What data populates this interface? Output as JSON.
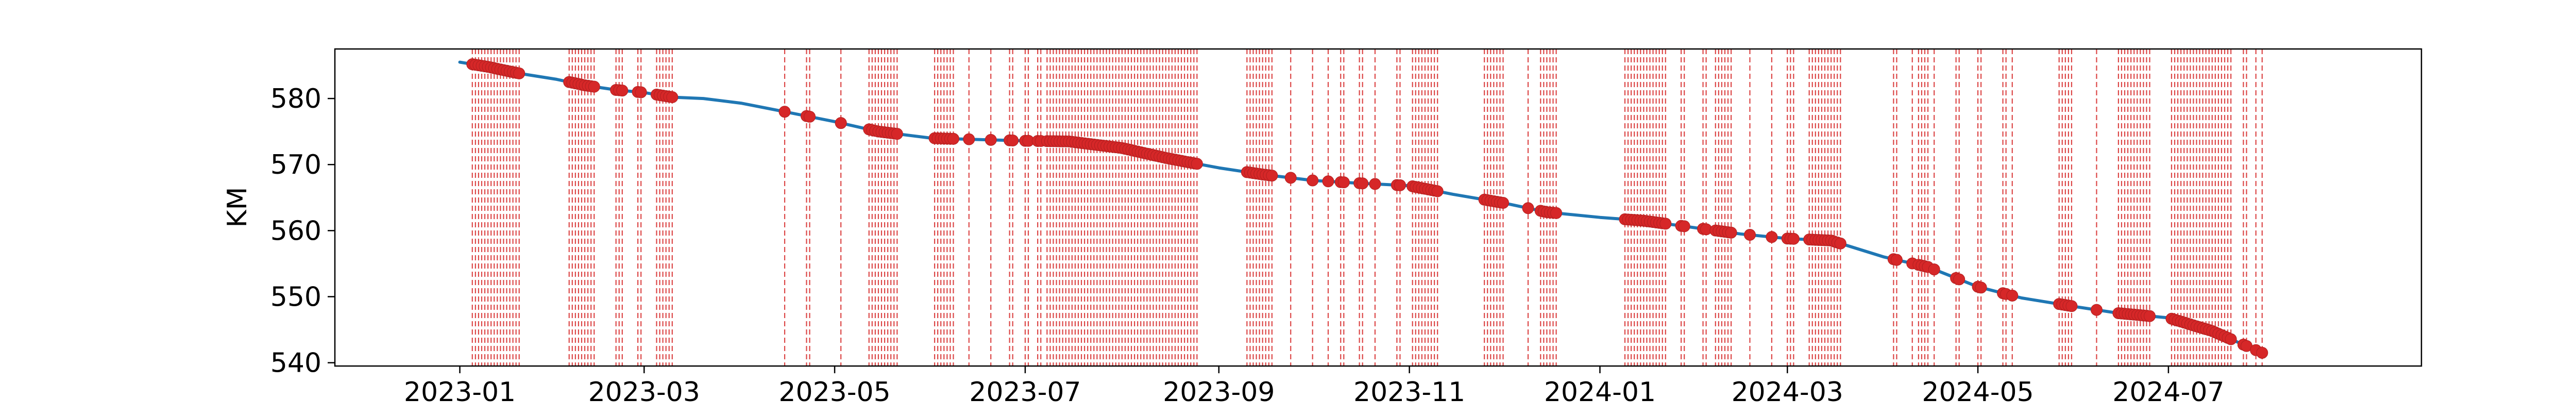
{
  "chart_data": {
    "type": "line",
    "title": "",
    "xlabel": "",
    "ylabel": "KM",
    "x_range": [
      "2022-11-22",
      "2024-09-20"
    ],
    "ylim": [
      539.5,
      587.5
    ],
    "grid": false,
    "x_ticks": [
      "2023-01",
      "2023-03",
      "2023-05",
      "2023-07",
      "2023-09",
      "2023-11",
      "2024-01",
      "2024-03",
      "2024-05",
      "2024-07"
    ],
    "x_tick_dates": [
      "2023-01-01",
      "2023-03-01",
      "2023-05-01",
      "2023-07-01",
      "2023-09-01",
      "2023-11-01",
      "2024-01-01",
      "2024-03-01",
      "2024-05-01",
      "2024-07-01"
    ],
    "y_ticks": [
      "540",
      "550",
      "560",
      "570",
      "580"
    ],
    "y_tick_values": [
      540,
      550,
      560,
      570,
      580
    ],
    "line_color": "#1f77b4",
    "marker_color": "#d62728",
    "series": [
      {
        "x": [
          "2023-01-01",
          "2023-01-10",
          "2023-01-20",
          "2023-02-01",
          "2023-02-10",
          "2023-02-20",
          "2023-03-01",
          "2023-03-10",
          "2023-03-20",
          "2023-04-01",
          "2023-04-15",
          "2023-05-01",
          "2023-05-15",
          "2023-06-01",
          "2023-06-15",
          "2023-07-01",
          "2023-07-15",
          "2023-08-01",
          "2023-08-15",
          "2023-09-01",
          "2023-09-15",
          "2023-10-01",
          "2023-10-15",
          "2023-11-01",
          "2023-11-15",
          "2023-12-01",
          "2023-12-15",
          "2024-01-01",
          "2024-01-15",
          "2024-02-01",
          "2024-02-15",
          "2024-03-01",
          "2024-03-15",
          "2024-04-01",
          "2024-04-15",
          "2024-05-01",
          "2024-05-15",
          "2024-06-01",
          "2024-06-15",
          "2024-07-01",
          "2024-07-15",
          "2024-07-31"
        ],
        "y": [
          585.5,
          584.8,
          583.8,
          582.9,
          582.0,
          581.3,
          580.9,
          580.2,
          580.0,
          579.3,
          578.0,
          576.5,
          575.0,
          574.0,
          573.8,
          573.6,
          573.5,
          572.5,
          571.0,
          569.5,
          568.5,
          567.6,
          567.2,
          566.8,
          565.5,
          564.2,
          562.8,
          562.0,
          561.5,
          560.4,
          559.5,
          558.8,
          558.5,
          556.0,
          554.5,
          551.5,
          549.8,
          548.5,
          547.5,
          546.8,
          544.8,
          541.5
        ]
      }
    ],
    "marker_dates": [
      "2023-01-05",
      "2023-01-06",
      "2023-01-07",
      "2023-01-08",
      "2023-01-09",
      "2023-01-10",
      "2023-01-11",
      "2023-01-12",
      "2023-01-13",
      "2023-01-14",
      "2023-01-15",
      "2023-01-16",
      "2023-01-17",
      "2023-01-18",
      "2023-01-19",
      "2023-01-20",
      "2023-02-05",
      "2023-02-06",
      "2023-02-07",
      "2023-02-08",
      "2023-02-09",
      "2023-02-10",
      "2023-02-11",
      "2023-02-12",
      "2023-02-13",
      "2023-02-20",
      "2023-02-21",
      "2023-02-22",
      "2023-02-27",
      "2023-02-28",
      "2023-03-05",
      "2023-03-06",
      "2023-03-07",
      "2023-03-08",
      "2023-03-09",
      "2023-03-10",
      "2023-04-15",
      "2023-04-22",
      "2023-04-23",
      "2023-05-03",
      "2023-05-12",
      "2023-05-13",
      "2023-05-14",
      "2023-05-15",
      "2023-05-16",
      "2023-05-17",
      "2023-05-18",
      "2023-05-19",
      "2023-05-20",
      "2023-05-21",
      "2023-06-02",
      "2023-06-03",
      "2023-06-04",
      "2023-06-05",
      "2023-06-06",
      "2023-06-07",
      "2023-06-08",
      "2023-06-13",
      "2023-06-20",
      "2023-06-26",
      "2023-06-27",
      "2023-07-01",
      "2023-07-02",
      "2023-07-05",
      "2023-07-06",
      "2023-07-08",
      "2023-07-09",
      "2023-07-10",
      "2023-07-11",
      "2023-07-12",
      "2023-07-13",
      "2023-07-14",
      "2023-07-15",
      "2023-07-16",
      "2023-07-17",
      "2023-07-18",
      "2023-07-19",
      "2023-07-20",
      "2023-07-21",
      "2023-07-22",
      "2023-07-23",
      "2023-07-24",
      "2023-07-25",
      "2023-07-26",
      "2023-07-27",
      "2023-07-28",
      "2023-07-29",
      "2023-07-30",
      "2023-07-31",
      "2023-08-01",
      "2023-08-02",
      "2023-08-03",
      "2023-08-04",
      "2023-08-05",
      "2023-08-06",
      "2023-08-07",
      "2023-08-08",
      "2023-08-09",
      "2023-08-10",
      "2023-08-11",
      "2023-08-12",
      "2023-08-13",
      "2023-08-14",
      "2023-08-15",
      "2023-08-16",
      "2023-08-17",
      "2023-08-18",
      "2023-08-19",
      "2023-08-20",
      "2023-08-21",
      "2023-08-22",
      "2023-08-23",
      "2023-08-24",
      "2023-08-25",
      "2023-09-10",
      "2023-09-11",
      "2023-09-12",
      "2023-09-13",
      "2023-09-14",
      "2023-09-15",
      "2023-09-16",
      "2023-09-17",
      "2023-09-18",
      "2023-09-24",
      "2023-10-01",
      "2023-10-06",
      "2023-10-10",
      "2023-10-11",
      "2023-10-16",
      "2023-10-17",
      "2023-10-21",
      "2023-10-28",
      "2023-10-29",
      "2023-11-02",
      "2023-11-03",
      "2023-11-04",
      "2023-11-05",
      "2023-11-06",
      "2023-11-07",
      "2023-11-08",
      "2023-11-09",
      "2023-11-10",
      "2023-11-25",
      "2023-11-26",
      "2023-11-27",
      "2023-11-28",
      "2023-11-29",
      "2023-11-30",
      "2023-12-01",
      "2023-12-09",
      "2023-12-13",
      "2023-12-14",
      "2023-12-15",
      "2023-12-16",
      "2023-12-17",
      "2023-12-18",
      "2024-01-09",
      "2024-01-10",
      "2024-01-11",
      "2024-01-12",
      "2024-01-13",
      "2024-01-14",
      "2024-01-15",
      "2024-01-16",
      "2024-01-17",
      "2024-01-18",
      "2024-01-19",
      "2024-01-20",
      "2024-01-21",
      "2024-01-22",
      "2024-01-27",
      "2024-01-28",
      "2024-02-03",
      "2024-02-04",
      "2024-02-07",
      "2024-02-08",
      "2024-02-09",
      "2024-02-10",
      "2024-02-11",
      "2024-02-12",
      "2024-02-18",
      "2024-02-25",
      "2024-03-01",
      "2024-03-02",
      "2024-03-03",
      "2024-03-08",
      "2024-03-09",
      "2024-03-10",
      "2024-03-11",
      "2024-03-12",
      "2024-03-13",
      "2024-03-14",
      "2024-03-15",
      "2024-03-16",
      "2024-03-17",
      "2024-03-18",
      "2024-04-04",
      "2024-04-05",
      "2024-04-10",
      "2024-04-12",
      "2024-04-13",
      "2024-04-14",
      "2024-04-15",
      "2024-04-17",
      "2024-04-24",
      "2024-04-25",
      "2024-05-01",
      "2024-05-02",
      "2024-05-09",
      "2024-05-10",
      "2024-05-12",
      "2024-05-27",
      "2024-05-28",
      "2024-05-29",
      "2024-05-30",
      "2024-05-31",
      "2024-06-08",
      "2024-06-15",
      "2024-06-16",
      "2024-06-17",
      "2024-06-18",
      "2024-06-19",
      "2024-06-20",
      "2024-06-21",
      "2024-06-22",
      "2024-06-23",
      "2024-06-24",
      "2024-06-25",
      "2024-07-02",
      "2024-07-03",
      "2024-07-04",
      "2024-07-05",
      "2024-07-06",
      "2024-07-07",
      "2024-07-08",
      "2024-07-09",
      "2024-07-10",
      "2024-07-11",
      "2024-07-12",
      "2024-07-13",
      "2024-07-14",
      "2024-07-15",
      "2024-07-16",
      "2024-07-17",
      "2024-07-18",
      "2024-07-19",
      "2024-07-20",
      "2024-07-21",
      "2024-07-25",
      "2024-07-26",
      "2024-07-29",
      "2024-07-31"
    ]
  }
}
